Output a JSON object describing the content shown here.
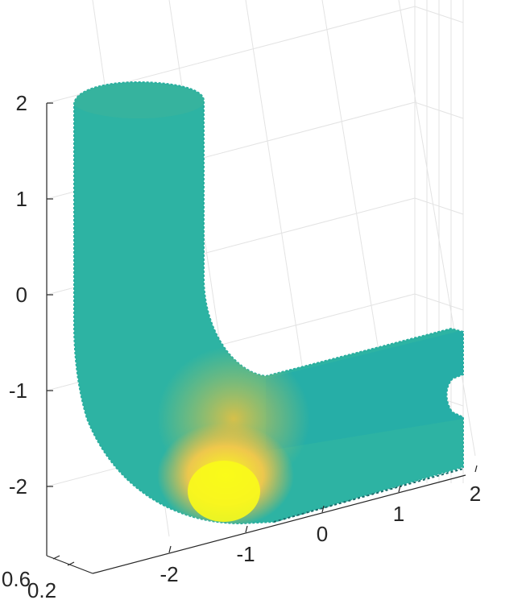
{
  "chart_data": {
    "type": "surface3d",
    "title": "",
    "xlabel": "",
    "ylabel": "",
    "zlabel": "",
    "grid": true,
    "colormap": "parula",
    "color_range_visible": [
      "teal",
      "yellow"
    ],
    "shape": "L-shaped bent pipe (vertical tube bending into a horizontal tube)",
    "x_ticks": [
      "-2",
      "-1",
      "0",
      "1",
      "2"
    ],
    "y_ticks": [
      "0.2",
      "0.6"
    ],
    "z_ticks": [
      "-2",
      "-1",
      "0",
      "1",
      "2"
    ],
    "x_range": [
      -2.6,
      2
    ],
    "z_range": [
      -2.6,
      2.4
    ],
    "colors": {
      "teal": "#2eb2a0",
      "teal_dark": "#1fa6a6",
      "yellow": "#f9fb1a",
      "orange": "#f5bb3a",
      "grid": "#e3e3e3",
      "axis": "#262626"
    }
  }
}
